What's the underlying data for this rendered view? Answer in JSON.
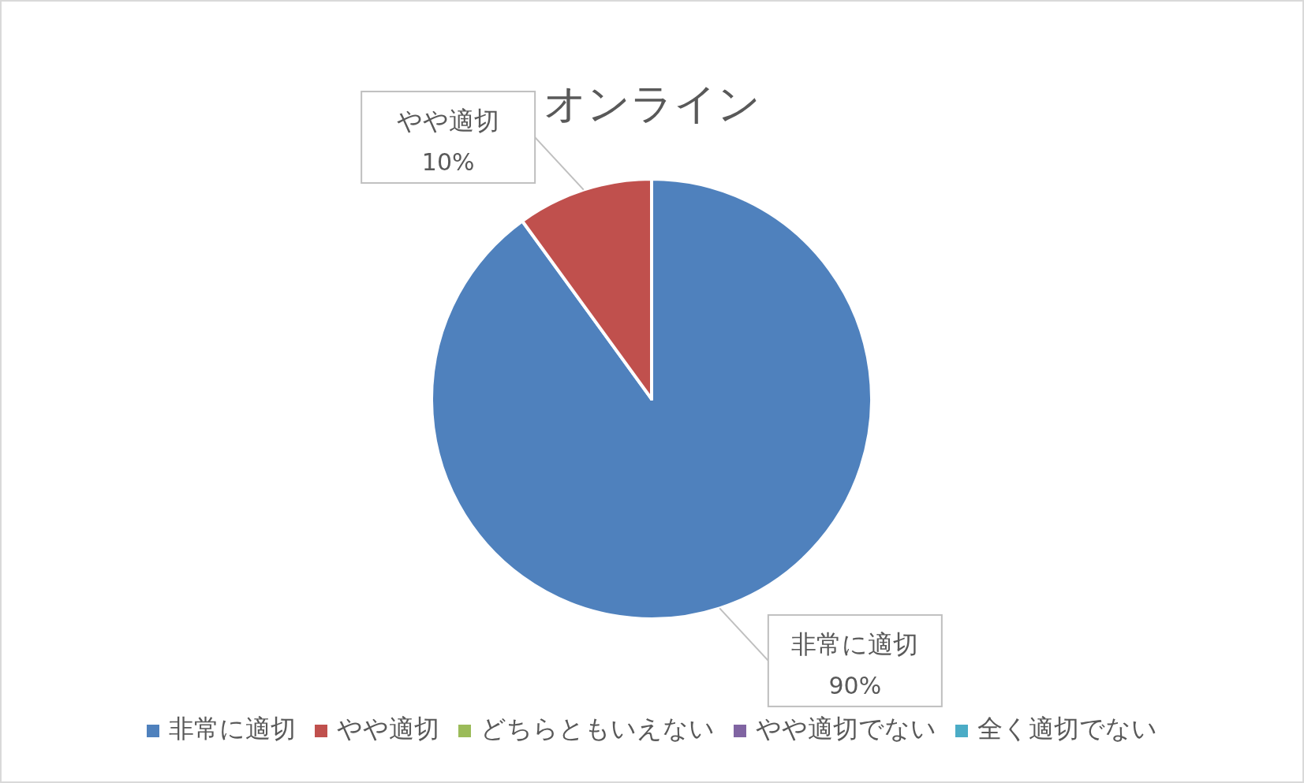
{
  "chart_data": {
    "type": "pie",
    "title": "オンライン",
    "categories": [
      "非常に適切",
      "やや適切",
      "どちらともいえない",
      "やや適切でない",
      "全く適切でない"
    ],
    "values": [
      90,
      10,
      0,
      0,
      0
    ],
    "colors": [
      "#4f81bd",
      "#c0504d",
      "#9bbb59",
      "#8064a2",
      "#4bacc6"
    ],
    "value_labels": [
      "90%",
      "10%",
      null,
      null,
      null
    ],
    "legend": "bottom"
  }
}
